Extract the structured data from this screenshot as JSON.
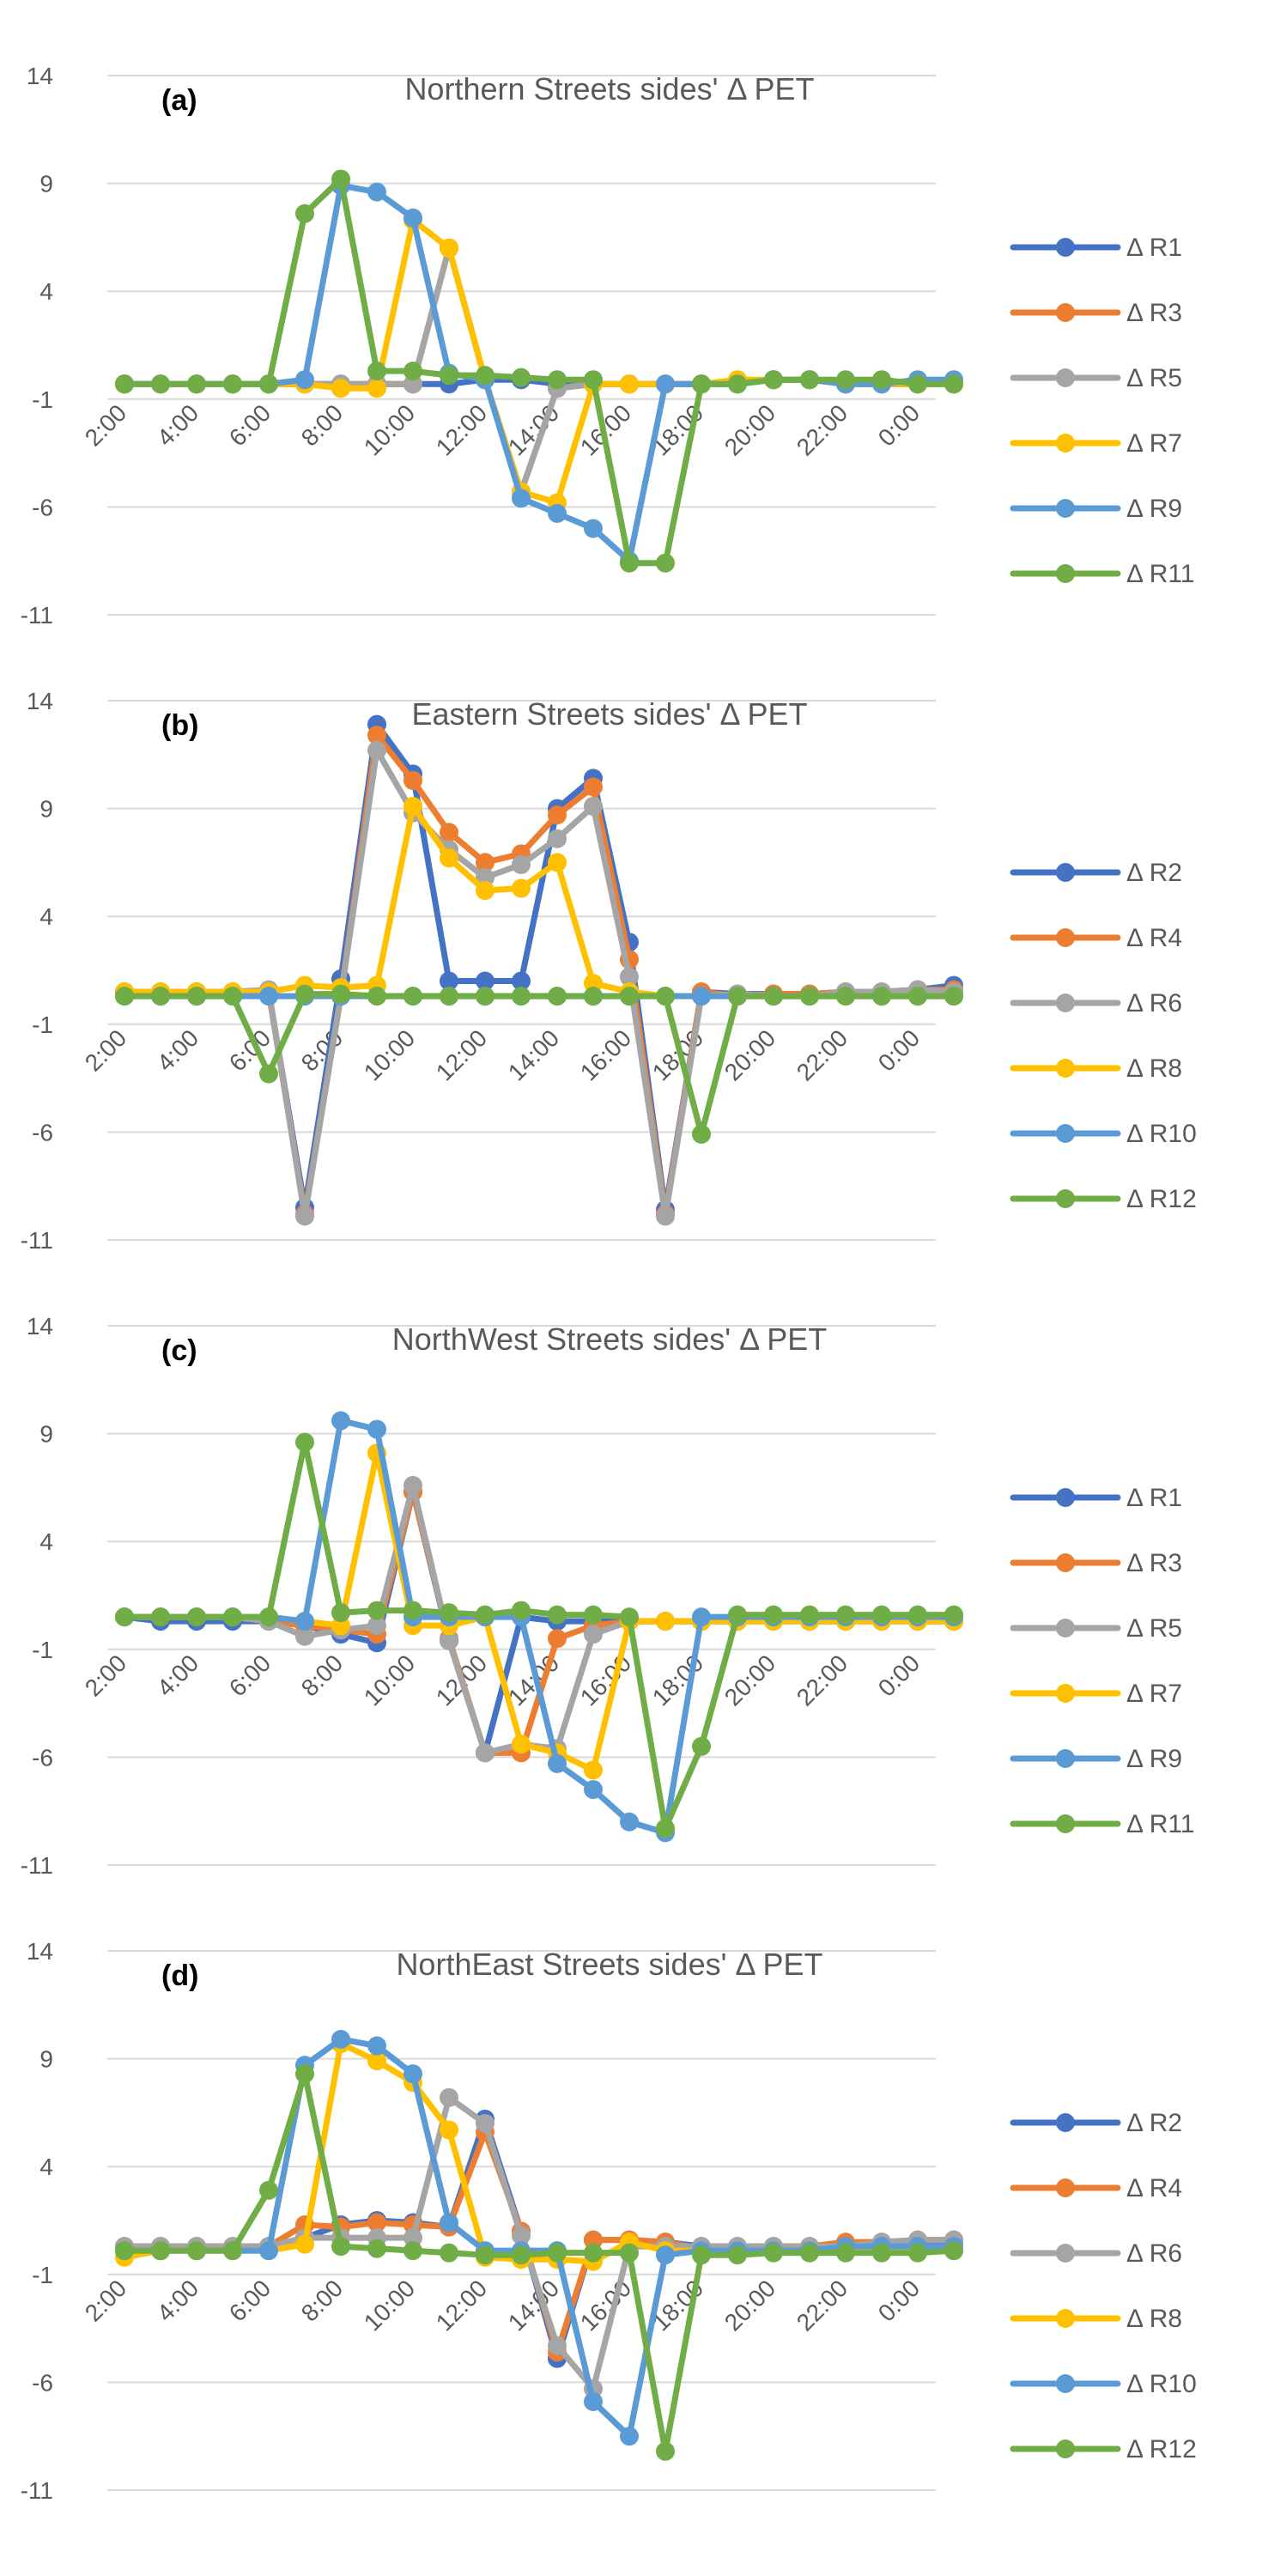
{
  "chart_data": [
    {
      "type": "line",
      "panel_label": "(a)",
      "title": "Northern Streets sides' Δ PET",
      "xlabel": "",
      "ylabel": "",
      "ylim": [
        -11,
        14
      ],
      "yticks": [
        "14",
        "9",
        "4",
        "-1",
        "-6",
        "-11"
      ],
      "x_tick_labels": [
        "2:00",
        "4:00",
        "6:00",
        "8:00",
        "10:00",
        "12:00",
        "14:00",
        "16:00",
        "18:00",
        "20:00",
        "22:00",
        "0:00"
      ],
      "categories": [
        "2:00",
        "3:00",
        "4:00",
        "5:00",
        "6:00",
        "7:00",
        "8:00",
        "9:00",
        "10:00",
        "11:00",
        "12:00",
        "13:00",
        "14:00",
        "15:00",
        "16:00",
        "17:00",
        "18:00",
        "19:00",
        "20:00",
        "21:00",
        "22:00",
        "23:00",
        "0:00",
        "1:00"
      ],
      "grid": true,
      "legend": "right",
      "series": [
        {
          "name": "Δ R1",
          "color": "#4472C4",
          "values": [
            -0.3,
            -0.3,
            -0.3,
            -0.3,
            -0.3,
            -0.3,
            -0.3,
            -0.3,
            -0.3,
            -0.3,
            -0.1,
            -0.1,
            -0.3,
            -0.3,
            -0.3,
            -0.3,
            -0.3,
            -0.3,
            -0.1,
            -0.1,
            -0.3,
            -0.3,
            -0.3,
            -0.3
          ]
        },
        {
          "name": "Δ R3",
          "color": "#ED7D31",
          "values": [
            -0.3,
            -0.3,
            -0.3,
            -0.3,
            -0.3,
            -0.3,
            -0.3,
            -0.3,
            -0.3,
            6.0,
            -0.1,
            -5.3,
            -0.5,
            -0.3,
            -0.3,
            -0.3,
            -0.3,
            -0.3,
            -0.1,
            -0.1,
            -0.3,
            -0.3,
            -0.3,
            -0.3
          ]
        },
        {
          "name": "Δ R5",
          "color": "#A5A5A5",
          "values": [
            -0.3,
            -0.3,
            -0.3,
            -0.3,
            -0.3,
            -0.3,
            -0.3,
            -0.3,
            -0.3,
            6.0,
            -0.1,
            -5.3,
            -0.5,
            -0.3,
            -0.3,
            -0.3,
            -0.3,
            -0.3,
            -0.1,
            -0.1,
            -0.3,
            -0.3,
            -0.3,
            -0.3
          ]
        },
        {
          "name": "Δ R7",
          "color": "#FFC000",
          "values": [
            -0.3,
            -0.3,
            -0.3,
            -0.3,
            -0.3,
            -0.3,
            -0.5,
            -0.5,
            7.3,
            6.0,
            -0.1,
            -5.3,
            -5.8,
            -0.3,
            -0.3,
            -0.3,
            -0.3,
            -0.1,
            -0.1,
            -0.1,
            -0.3,
            -0.3,
            -0.3,
            -0.3
          ]
        },
        {
          "name": "Δ R9",
          "color": "#5B9BD5",
          "values": [
            -0.3,
            -0.3,
            -0.3,
            -0.3,
            -0.3,
            -0.1,
            8.9,
            8.6,
            7.4,
            0.2,
            -0.1,
            -5.6,
            -6.3,
            -7.0,
            -8.5,
            -0.3,
            -0.3,
            -0.3,
            -0.1,
            -0.1,
            -0.3,
            -0.3,
            -0.1,
            -0.1
          ]
        },
        {
          "name": "Δ R11",
          "color": "#70AD47",
          "values": [
            -0.3,
            -0.3,
            -0.3,
            -0.3,
            -0.3,
            7.6,
            9.2,
            0.3,
            0.3,
            0.1,
            0.1,
            0.0,
            -0.1,
            -0.1,
            -8.6,
            -8.6,
            -0.3,
            -0.3,
            -0.1,
            -0.1,
            -0.1,
            -0.1,
            -0.3,
            -0.3
          ]
        }
      ]
    },
    {
      "type": "line",
      "panel_label": "(b)",
      "title": "Eastern Streets sides' Δ PET",
      "xlabel": "",
      "ylabel": "",
      "ylim": [
        -11,
        14
      ],
      "yticks": [
        "14",
        "9",
        "4",
        "-1",
        "-6",
        "-11"
      ],
      "x_tick_labels": [
        "2:00",
        "4:00",
        "6:00",
        "8:00",
        "10:00",
        "12:00",
        "14:00",
        "16:00",
        "18:00",
        "20:00",
        "22:00",
        "0:00"
      ],
      "categories": [
        "2:00",
        "3:00",
        "4:00",
        "5:00",
        "6:00",
        "7:00",
        "8:00",
        "9:00",
        "10:00",
        "11:00",
        "12:00",
        "13:00",
        "14:00",
        "15:00",
        "16:00",
        "17:00",
        "18:00",
        "19:00",
        "20:00",
        "21:00",
        "22:00",
        "23:00",
        "0:00",
        "1:00"
      ],
      "grid": true,
      "legend": "right",
      "series": [
        {
          "name": "Δ R2",
          "color": "#4472C4",
          "values": [
            0.5,
            0.5,
            0.5,
            0.5,
            0.5,
            -9.5,
            1.1,
            12.9,
            10.6,
            1.0,
            1.0,
            1.0,
            9.0,
            10.4,
            2.8,
            -9.6,
            0.5,
            0.4,
            0.4,
            0.4,
            0.5,
            0.5,
            0.6,
            0.8
          ]
        },
        {
          "name": "Δ R4",
          "color": "#ED7D31",
          "values": [
            0.5,
            0.5,
            0.5,
            0.5,
            0.5,
            -9.8,
            0.3,
            12.4,
            10.3,
            7.9,
            6.5,
            6.9,
            8.7,
            10.0,
            2.0,
            -9.8,
            0.5,
            0.3,
            0.4,
            0.4,
            0.5,
            0.5,
            0.6,
            0.6
          ]
        },
        {
          "name": "Δ R6",
          "color": "#A5A5A5",
          "values": [
            0.5,
            0.5,
            0.5,
            0.5,
            0.6,
            -9.9,
            0.3,
            11.7,
            8.8,
            7.1,
            5.8,
            6.4,
            7.6,
            9.1,
            1.2,
            -9.9,
            0.3,
            0.4,
            0.3,
            0.3,
            0.5,
            0.5,
            0.6,
            0.5
          ]
        },
        {
          "name": "Δ R8",
          "color": "#FFC000",
          "values": [
            0.5,
            0.5,
            0.5,
            0.5,
            0.5,
            0.8,
            0.7,
            0.8,
            9.1,
            6.7,
            5.2,
            5.3,
            6.5,
            0.9,
            0.5,
            0.3,
            0.3,
            0.3,
            0.3,
            0.3,
            0.3,
            0.3,
            0.3,
            0.3
          ]
        },
        {
          "name": "Δ R10",
          "color": "#5B9BD5",
          "values": [
            0.3,
            0.3,
            0.3,
            0.3,
            0.3,
            0.3,
            0.3,
            0.3,
            0.3,
            0.3,
            0.3,
            0.3,
            0.3,
            0.3,
            0.3,
            0.3,
            0.3,
            0.3,
            0.3,
            0.3,
            0.3,
            0.3,
            0.3,
            0.3
          ]
        },
        {
          "name": "Δ R12",
          "color": "#70AD47",
          "values": [
            0.3,
            0.3,
            0.3,
            0.3,
            -3.3,
            0.4,
            0.4,
            0.3,
            0.3,
            0.3,
            0.3,
            0.3,
            0.3,
            0.3,
            0.3,
            0.3,
            -6.1,
            0.3,
            0.3,
            0.3,
            0.3,
            0.3,
            0.3,
            0.3
          ]
        }
      ]
    },
    {
      "type": "line",
      "panel_label": "(c)",
      "title": "NorthWest Streets sides' Δ PET",
      "xlabel": "",
      "ylabel": "",
      "ylim": [
        -11,
        14
      ],
      "yticks": [
        "14",
        "9",
        "4",
        "-1",
        "-6",
        "-11"
      ],
      "x_tick_labels": [
        "2:00",
        "4:00",
        "6:00",
        "8:00",
        "10:00",
        "12:00",
        "14:00",
        "16:00",
        "18:00",
        "20:00",
        "22:00",
        "0:00"
      ],
      "categories": [
        "2:00",
        "3:00",
        "4:00",
        "5:00",
        "6:00",
        "7:00",
        "8:00",
        "9:00",
        "10:00",
        "11:00",
        "12:00",
        "13:00",
        "14:00",
        "15:00",
        "16:00",
        "17:00",
        "18:00",
        "19:00",
        "20:00",
        "21:00",
        "22:00",
        "23:00",
        "0:00",
        "1:00"
      ],
      "grid": true,
      "legend": "right",
      "series": [
        {
          "name": "Δ R1",
          "color": "#4472C4",
          "values": [
            0.5,
            0.3,
            0.3,
            0.3,
            0.3,
            0.1,
            -0.3,
            -0.7,
            6.3,
            -0.6,
            -5.8,
            0.5,
            0.3,
            0.3,
            0.3,
            0.3,
            0.3,
            0.3,
            0.3,
            0.3,
            0.3,
            0.3,
            0.3,
            0.3
          ]
        },
        {
          "name": "Δ R3",
          "color": "#ED7D31",
          "values": [
            0.5,
            0.5,
            0.5,
            0.5,
            0.3,
            0.1,
            -0.1,
            -0.3,
            6.3,
            -0.5,
            -5.8,
            -5.8,
            -0.5,
            0.1,
            0.3,
            0.3,
            0.3,
            0.3,
            0.5,
            0.3,
            0.3,
            0.5,
            0.3,
            0.3
          ]
        },
        {
          "name": "Δ R5",
          "color": "#A5A5A5",
          "values": [
            0.5,
            0.5,
            0.5,
            0.5,
            0.3,
            -0.4,
            -0.1,
            0.1,
            6.6,
            -0.6,
            -5.8,
            -5.4,
            -5.6,
            -0.3,
            0.3,
            0.3,
            0.3,
            0.3,
            0.3,
            0.3,
            0.3,
            0.3,
            0.3,
            0.3
          ]
        },
        {
          "name": "Δ R7",
          "color": "#FFC000",
          "values": [
            0.5,
            0.5,
            0.5,
            0.5,
            0.5,
            0.3,
            0.1,
            8.1,
            0.1,
            0.1,
            0.5,
            -5.4,
            -5.8,
            -6.6,
            0.3,
            0.3,
            0.3,
            0.3,
            0.3,
            0.3,
            0.3,
            0.3,
            0.3,
            0.3
          ]
        },
        {
          "name": "Δ R9",
          "color": "#5B9BD5",
          "values": [
            0.5,
            0.5,
            0.5,
            0.5,
            0.5,
            0.3,
            9.6,
            9.2,
            0.5,
            0.5,
            0.5,
            0.5,
            -6.3,
            -7.5,
            -9.0,
            -9.5,
            0.5,
            0.5,
            0.5,
            0.5,
            0.5,
            0.5,
            0.5,
            0.5
          ]
        },
        {
          "name": "Δ R11",
          "color": "#70AD47",
          "values": [
            0.5,
            0.5,
            0.5,
            0.5,
            0.5,
            8.6,
            0.7,
            0.8,
            0.8,
            0.7,
            0.6,
            0.8,
            0.6,
            0.6,
            0.5,
            -9.3,
            -5.5,
            0.6,
            0.6,
            0.6,
            0.6,
            0.6,
            0.6,
            0.6
          ]
        }
      ]
    },
    {
      "type": "line",
      "panel_label": "(d)",
      "title": "NorthEast Streets sides' Δ PET",
      "xlabel": "",
      "ylabel": "",
      "ylim": [
        -11,
        14
      ],
      "yticks": [
        "14",
        "9",
        "4",
        "-1",
        "-6",
        "-11"
      ],
      "x_tick_labels": [
        "2:00",
        "4:00",
        "6:00",
        "8:00",
        "10:00",
        "12:00",
        "14:00",
        "16:00",
        "18:00",
        "20:00",
        "22:00",
        "0:00"
      ],
      "categories": [
        "2:00",
        "3:00",
        "4:00",
        "5:00",
        "6:00",
        "7:00",
        "8:00",
        "9:00",
        "10:00",
        "11:00",
        "12:00",
        "13:00",
        "14:00",
        "15:00",
        "16:00",
        "17:00",
        "18:00",
        "19:00",
        "20:00",
        "21:00",
        "22:00",
        "23:00",
        "0:00",
        "1:00"
      ],
      "grid": true,
      "legend": "right",
      "series": [
        {
          "name": "Δ R2",
          "color": "#4472C4",
          "values": [
            0.3,
            0.3,
            0.3,
            0.3,
            0.3,
            0.7,
            1.3,
            1.5,
            1.4,
            1.2,
            6.2,
            1.0,
            -4.9,
            0.6,
            0.6,
            0.5,
            0.3,
            0.3,
            0.3,
            0.3,
            0.3,
            0.3,
            0.5,
            0.5
          ]
        },
        {
          "name": "Δ R4",
          "color": "#ED7D31",
          "values": [
            0.3,
            0.3,
            0.3,
            0.3,
            0.3,
            1.3,
            1.2,
            1.4,
            1.3,
            1.2,
            5.6,
            1.0,
            -4.6,
            0.6,
            0.6,
            0.5,
            0.2,
            0.2,
            0.3,
            0.3,
            0.5,
            0.5,
            0.6,
            0.6
          ]
        },
        {
          "name": "Δ R6",
          "color": "#A5A5A5",
          "values": [
            0.3,
            0.3,
            0.3,
            0.3,
            0.3,
            0.7,
            0.7,
            0.7,
            0.7,
            7.2,
            6.0,
            0.8,
            -4.3,
            -6.3,
            0.3,
            0.3,
            0.3,
            0.3,
            0.3,
            0.3,
            0.3,
            0.5,
            0.6,
            0.6
          ]
        },
        {
          "name": "Δ R8",
          "color": "#FFC000",
          "values": [
            -0.2,
            0.1,
            0.1,
            0.1,
            0.1,
            0.4,
            9.7,
            8.9,
            7.9,
            5.7,
            -0.2,
            -0.3,
            -0.3,
            -0.4,
            0.5,
            0.1,
            0.1,
            0.1,
            0.1,
            0.1,
            0.1,
            0.1,
            0.1,
            0.1
          ]
        },
        {
          "name": "Δ R10",
          "color": "#5B9BD5",
          "values": [
            0.1,
            0.1,
            0.1,
            0.1,
            0.1,
            8.7,
            9.9,
            9.6,
            8.3,
            1.4,
            0.1,
            0.1,
            0.1,
            -6.9,
            -8.5,
            -0.1,
            0.1,
            0.1,
            0.1,
            0.1,
            0.3,
            0.3,
            0.3,
            0.3
          ]
        },
        {
          "name": "Δ R12",
          "color": "#70AD47",
          "values": [
            0.1,
            0.1,
            0.1,
            0.1,
            2.9,
            8.3,
            0.3,
            0.2,
            0.1,
            0.0,
            -0.1,
            -0.1,
            0.0,
            0.0,
            0.0,
            -9.2,
            -0.1,
            -0.1,
            0.0,
            0.0,
            0.0,
            0.0,
            0.0,
            0.1
          ]
        }
      ]
    }
  ]
}
